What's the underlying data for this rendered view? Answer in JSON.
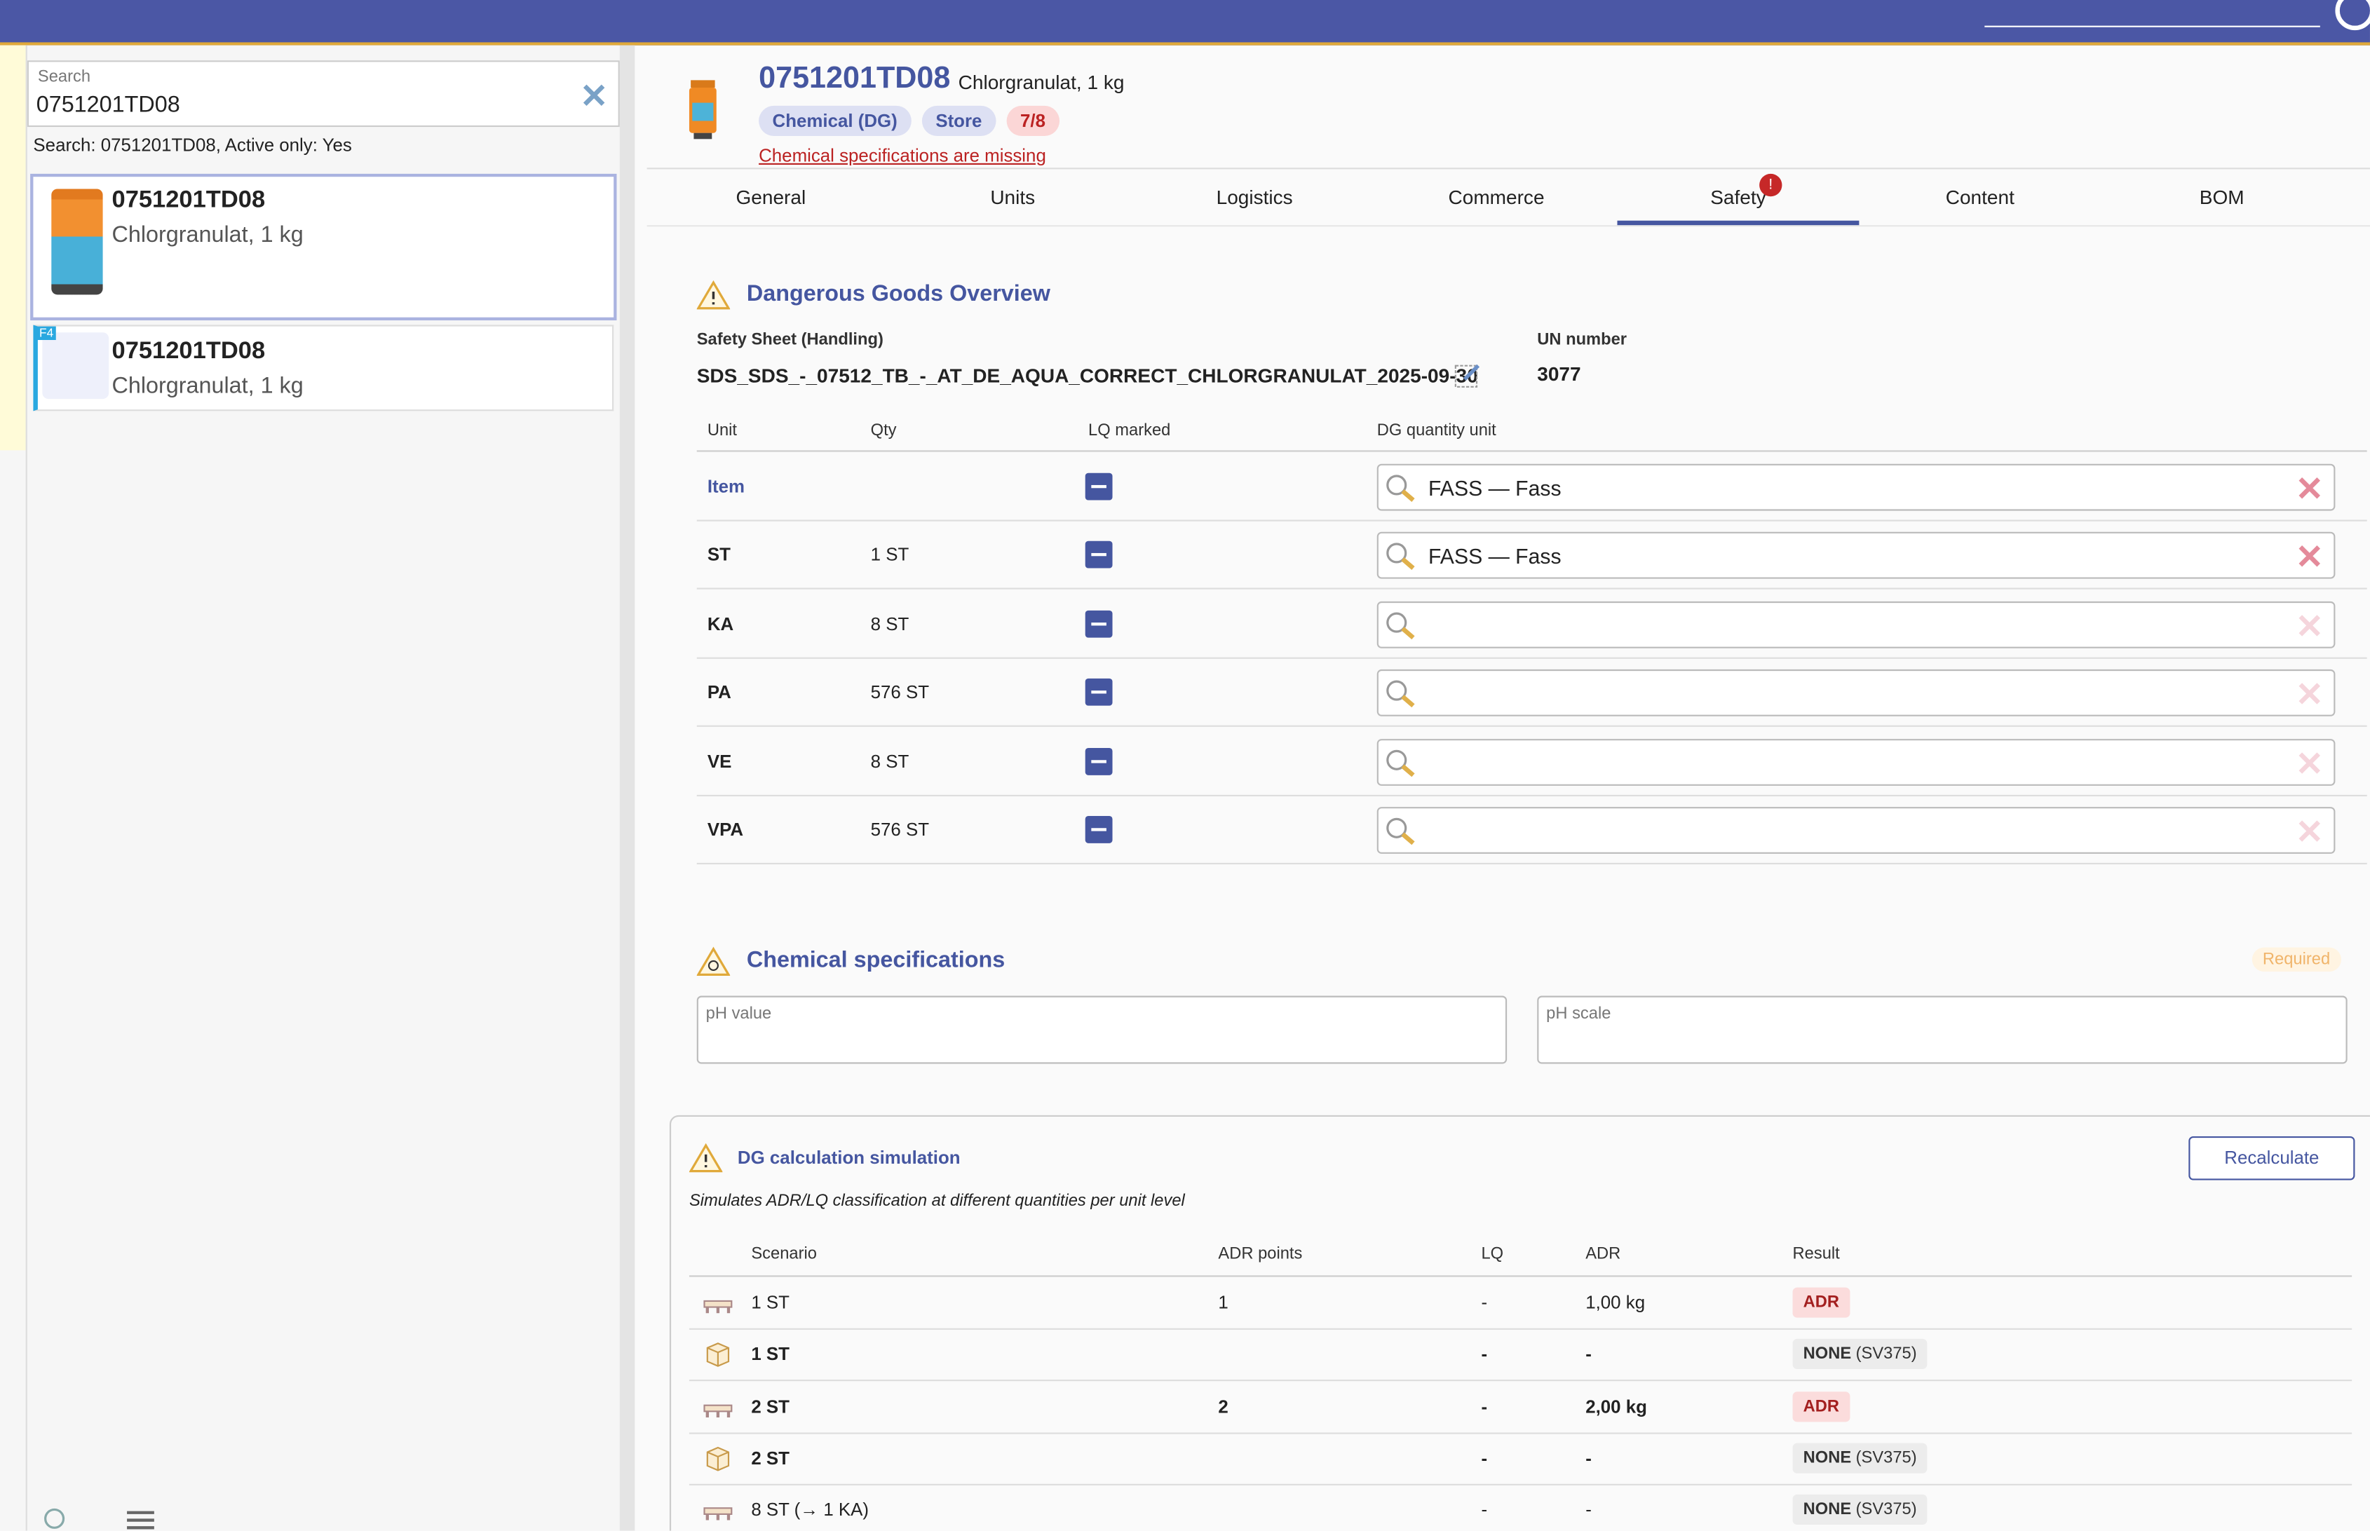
{
  "search": {
    "label": "Search",
    "value": "0751201TD08",
    "summary": "Search: 0751201TD08, Active only: Yes"
  },
  "results": [
    {
      "code": "0751201TD08",
      "name": "Chlorgranulat, 1 kg"
    },
    {
      "code": "0751201TD08",
      "name": "Chlorgranulat, 1 kg",
      "badge": "F4"
    }
  ],
  "product": {
    "code": "0751201TD08",
    "name": "Chlorgranulat, 1 kg",
    "tags": [
      "Chemical (DG)",
      "Store",
      "7/8"
    ],
    "warning": "Chemical specifications are missing"
  },
  "tabs": {
    "items": [
      "General",
      "Units",
      "Logistics",
      "Commerce",
      "Safety",
      "Content",
      "BOM"
    ],
    "active": 4,
    "alert": "!"
  },
  "dg_overview": {
    "title": "Dangerous Goods Overview",
    "safety_sheet_label": "Safety Sheet (Handling)",
    "safety_sheet": "SDS_SDS_-_07512_TB_-_AT_DE_AQUA_CORRECT_CHLORGRANULAT_2025-09-30",
    "un_label": "UN number",
    "un_number": "3077",
    "columns": [
      "Unit",
      "Qty",
      "LQ marked",
      "DG quantity unit"
    ],
    "rows": [
      {
        "unit": "Item",
        "link": true,
        "dg_unit": "FASS — Fass"
      },
      {
        "unit": "ST",
        "qty": "1 ST",
        "dg_unit": "FASS — Fass"
      },
      {
        "unit": "KA",
        "qty": "8 ST"
      },
      {
        "unit": "PA",
        "qty": "576 ST"
      },
      {
        "unit": "VE",
        "qty": "8 ST"
      },
      {
        "unit": "VPA",
        "qty": "576 ST"
      }
    ]
  },
  "chemical_specifications": {
    "title": "Chemical specifications",
    "status": "Required",
    "fields": [
      "pH value",
      "pH scale"
    ]
  },
  "simulation": {
    "title": "DG calculation simulation",
    "button": "Recalculate",
    "subtitle": "Simulates ADR/LQ classification at different quantities per unit level",
    "columns": [
      "Scenario",
      "ADR points",
      "LQ",
      "ADR",
      "Result"
    ],
    "rows": [
      {
        "icon": "pallet",
        "scenario": "1 ST",
        "adr_points": "1",
        "lq": "-",
        "adr": "1,00 kg",
        "result": "ADR"
      },
      {
        "icon": "box",
        "bold": true,
        "scenario": "1 ST",
        "lq": "-",
        "adr": "-",
        "result": "NONE",
        "note": "(SV375)"
      },
      {
        "icon": "pallet",
        "bold": true,
        "scenario": "2 ST",
        "adr_points": "2",
        "lq": "-",
        "adr": "2,00 kg",
        "result": "ADR"
      },
      {
        "icon": "box",
        "bold": true,
        "scenario": "2 ST",
        "lq": "-",
        "adr": "-",
        "result": "NONE",
        "note": "(SV375)"
      },
      {
        "icon": "pallet",
        "scenario": "8 ST (→ 1 KA)",
        "lq": "-",
        "adr": "-",
        "result": "NONE",
        "note": "(SV375)"
      }
    ]
  }
}
